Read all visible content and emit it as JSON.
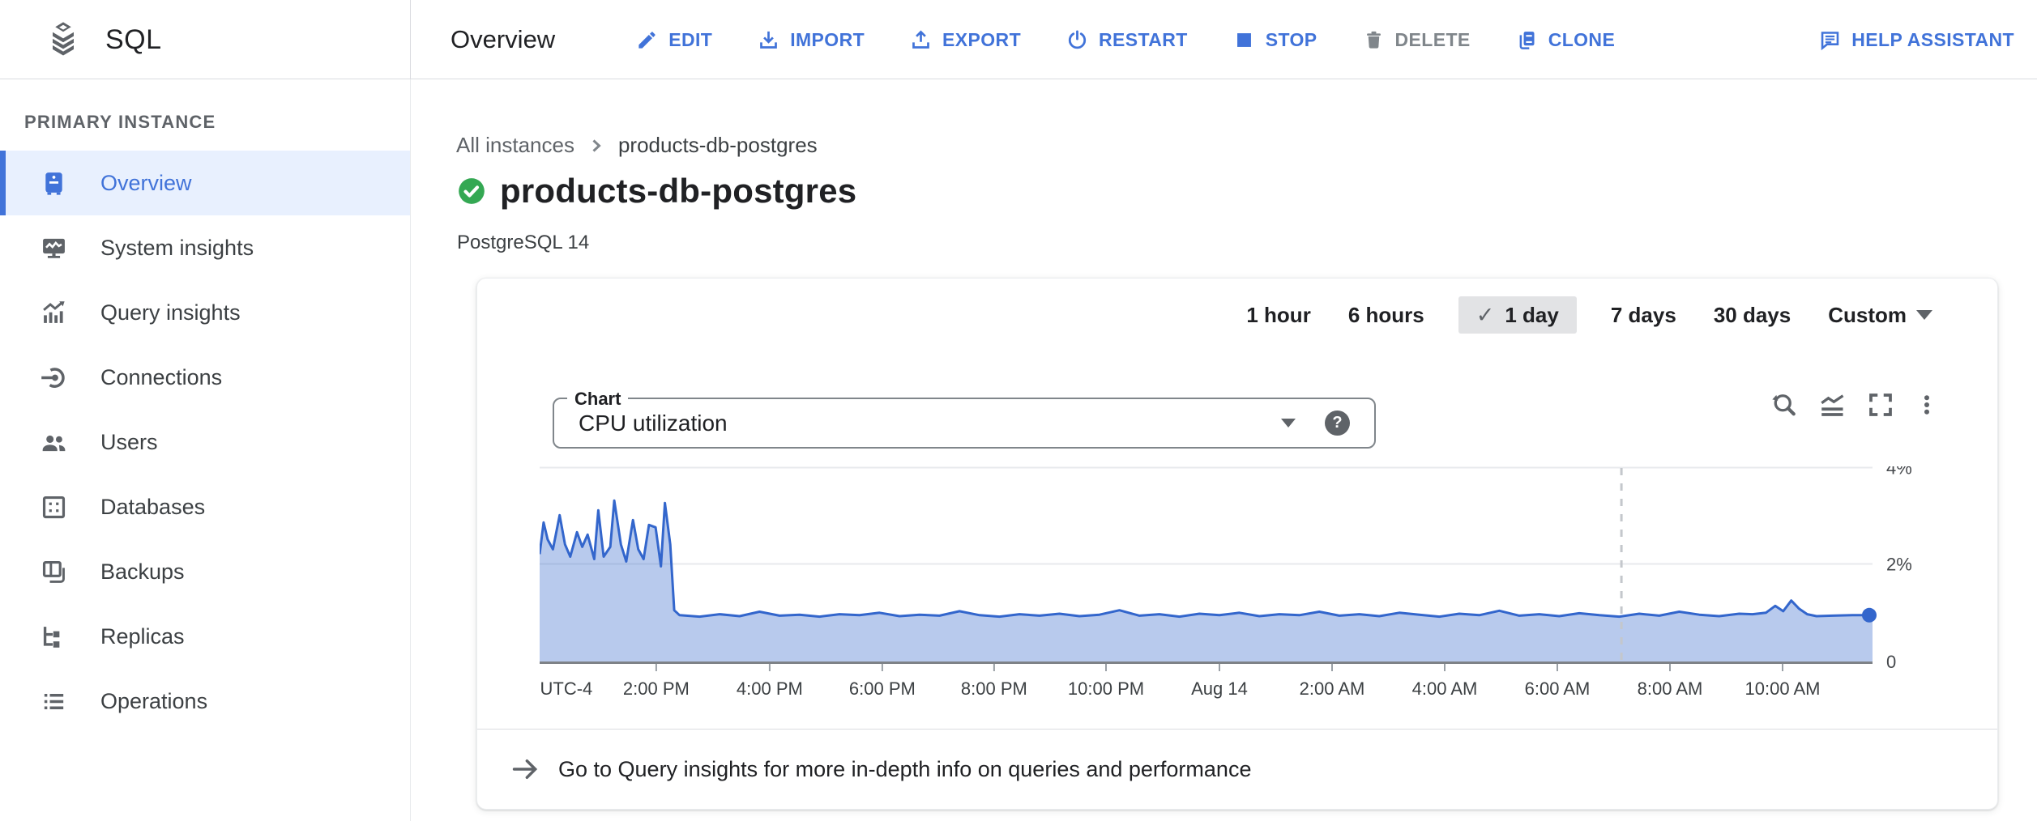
{
  "header": {
    "product": "SQL",
    "page_title": "Overview",
    "actions": [
      {
        "id": "edit",
        "label": "EDIT",
        "icon": "pencil-icon",
        "disabled": false,
        "align_right": false
      },
      {
        "id": "import",
        "label": "IMPORT",
        "icon": "import-icon",
        "disabled": false,
        "align_right": false
      },
      {
        "id": "export",
        "label": "EXPORT",
        "icon": "export-icon",
        "disabled": false,
        "align_right": false
      },
      {
        "id": "restart",
        "label": "RESTART",
        "icon": "restart-icon",
        "disabled": false,
        "align_right": false
      },
      {
        "id": "stop",
        "label": "STOP",
        "icon": "stop-icon",
        "disabled": false,
        "align_right": false
      },
      {
        "id": "delete",
        "label": "DELETE",
        "icon": "trash-icon",
        "disabled": true,
        "align_right": false
      },
      {
        "id": "clone",
        "label": "CLONE",
        "icon": "clone-icon",
        "disabled": false,
        "align_right": false
      },
      {
        "id": "help-assistant",
        "label": "HELP ASSISTANT",
        "icon": "chat-icon",
        "disabled": false,
        "align_right": true
      }
    ]
  },
  "sidebar": {
    "section_label": "PRIMARY INSTANCE",
    "items": [
      {
        "id": "overview",
        "label": "Overview",
        "icon": "overview-icon",
        "selected": true
      },
      {
        "id": "system-insights",
        "label": "System insights",
        "icon": "system-insights-icon",
        "selected": false
      },
      {
        "id": "query-insights",
        "label": "Query insights",
        "icon": "query-insights-icon",
        "selected": false
      },
      {
        "id": "connections",
        "label": "Connections",
        "icon": "connections-icon",
        "selected": false
      },
      {
        "id": "users",
        "label": "Users",
        "icon": "users-icon",
        "selected": false
      },
      {
        "id": "databases",
        "label": "Databases",
        "icon": "databases-icon",
        "selected": false
      },
      {
        "id": "backups",
        "label": "Backups",
        "icon": "backups-icon",
        "selected": false
      },
      {
        "id": "replicas",
        "label": "Replicas",
        "icon": "replicas-icon",
        "selected": false
      },
      {
        "id": "operations",
        "label": "Operations",
        "icon": "operations-icon",
        "selected": false
      }
    ]
  },
  "content": {
    "breadcrumb": {
      "parent": "All instances",
      "current": "products-db-postgres"
    },
    "instance": {
      "title": "products-db-postgres",
      "status": "running",
      "version": "PostgreSQL 14"
    },
    "time_range": {
      "options": [
        "1 hour",
        "6 hours",
        "1 day",
        "7 days",
        "30 days"
      ],
      "selected": "1 day",
      "selected_check": "✓",
      "custom_label": "Custom"
    },
    "chart_select": {
      "label": "Chart",
      "value": "CPU utilization",
      "help_glyph": "?"
    },
    "footer_link_text": "Go to Query insights for more in-depth info on queries and performance"
  },
  "colors": {
    "accent_blue": "#4173d9",
    "selected_bg": "#e8f0fe",
    "chart_line": "#3366cc",
    "chart_fill": "rgba(51,102,204,0.35)",
    "status_green": "#34a853",
    "text_primary": "#202124",
    "text_secondary": "#5f6368",
    "disabled_gray": "#80868b",
    "border": "#dadce0",
    "chip_bg": "#e2e3e5"
  },
  "chart_data": {
    "type": "area",
    "title": "CPU utilization",
    "unit": "%",
    "ylim": [
      0,
      4
    ],
    "grid": true,
    "timezone_label": "UTC-4",
    "now_line_x": 0.8116,
    "yticks": [
      {
        "value": 4,
        "label": "4%"
      },
      {
        "value": 2,
        "label": "2%"
      },
      {
        "value": 0,
        "label": "0"
      }
    ],
    "xticks": [
      {
        "label": "UTC-4",
        "x": 0.02,
        "tick": false
      },
      {
        "label": "2:00 PM",
        "x": 0.0875,
        "tick": true
      },
      {
        "label": "4:00 PM",
        "x": 0.1726,
        "tick": true
      },
      {
        "label": "6:00 PM",
        "x": 0.2571,
        "tick": true
      },
      {
        "label": "8:00 PM",
        "x": 0.341,
        "tick": true
      },
      {
        "label": "10:00 PM",
        "x": 0.4249,
        "tick": true
      },
      {
        "label": "Aug 14",
        "x": 0.51,
        "tick": true
      },
      {
        "label": "2:00 AM",
        "x": 0.5945,
        "tick": true
      },
      {
        "label": "4:00 AM",
        "x": 0.679,
        "tick": true
      },
      {
        "label": "6:00 AM",
        "x": 0.7635,
        "tick": true
      },
      {
        "label": "8:00 AM",
        "x": 0.848,
        "tick": true
      },
      {
        "label": "10:00 AM",
        "x": 0.9325,
        "tick": true
      }
    ],
    "series": [
      {
        "name": "CPU utilization (%)",
        "points": [
          [
            0.0,
            2.2
          ],
          [
            0.003,
            2.85
          ],
          [
            0.006,
            2.5
          ],
          [
            0.01,
            2.3
          ],
          [
            0.015,
            3.0
          ],
          [
            0.019,
            2.4
          ],
          [
            0.023,
            2.15
          ],
          [
            0.028,
            2.65
          ],
          [
            0.032,
            2.35
          ],
          [
            0.036,
            2.6
          ],
          [
            0.041,
            2.1
          ],
          [
            0.044,
            3.1
          ],
          [
            0.048,
            2.15
          ],
          [
            0.053,
            2.35
          ],
          [
            0.056,
            3.3
          ],
          [
            0.061,
            2.4
          ],
          [
            0.065,
            2.05
          ],
          [
            0.07,
            2.9
          ],
          [
            0.074,
            2.3
          ],
          [
            0.078,
            2.1
          ],
          [
            0.082,
            2.8
          ],
          [
            0.087,
            2.75
          ],
          [
            0.091,
            1.95
          ],
          [
            0.094,
            3.25
          ],
          [
            0.098,
            2.4
          ],
          [
            0.101,
            1.05
          ],
          [
            0.105,
            0.95
          ],
          [
            0.12,
            0.92
          ],
          [
            0.135,
            0.97
          ],
          [
            0.15,
            0.93
          ],
          [
            0.165,
            1.02
          ],
          [
            0.18,
            0.94
          ],
          [
            0.195,
            0.96
          ],
          [
            0.21,
            0.92
          ],
          [
            0.225,
            0.97
          ],
          [
            0.24,
            0.95
          ],
          [
            0.255,
            1.0
          ],
          [
            0.27,
            0.93
          ],
          [
            0.285,
            0.96
          ],
          [
            0.3,
            0.94
          ],
          [
            0.315,
            1.03
          ],
          [
            0.33,
            0.95
          ],
          [
            0.345,
            0.92
          ],
          [
            0.36,
            0.97
          ],
          [
            0.375,
            0.94
          ],
          [
            0.39,
            0.98
          ],
          [
            0.405,
            0.93
          ],
          [
            0.42,
            0.96
          ],
          [
            0.435,
            1.05
          ],
          [
            0.45,
            0.94
          ],
          [
            0.465,
            0.97
          ],
          [
            0.48,
            0.92
          ],
          [
            0.495,
            0.98
          ],
          [
            0.51,
            0.95
          ],
          [
            0.525,
            1.0
          ],
          [
            0.54,
            0.93
          ],
          [
            0.555,
            0.97
          ],
          [
            0.57,
            0.95
          ],
          [
            0.585,
            1.02
          ],
          [
            0.6,
            0.94
          ],
          [
            0.615,
            0.97
          ],
          [
            0.63,
            0.93
          ],
          [
            0.645,
            1.0
          ],
          [
            0.66,
            0.96
          ],
          [
            0.675,
            0.92
          ],
          [
            0.69,
            0.98
          ],
          [
            0.705,
            0.95
          ],
          [
            0.72,
            1.04
          ],
          [
            0.735,
            0.94
          ],
          [
            0.75,
            0.97
          ],
          [
            0.765,
            0.93
          ],
          [
            0.78,
            0.99
          ],
          [
            0.795,
            0.95
          ],
          [
            0.81,
            0.92
          ],
          [
            0.825,
            0.98
          ],
          [
            0.84,
            0.94
          ],
          [
            0.855,
            1.02
          ],
          [
            0.87,
            0.96
          ],
          [
            0.885,
            0.93
          ],
          [
            0.9,
            0.98
          ],
          [
            0.91,
            0.97
          ],
          [
            0.92,
            1.0
          ],
          [
            0.927,
            1.14
          ],
          [
            0.933,
            1.03
          ],
          [
            0.939,
            1.25
          ],
          [
            0.945,
            1.08
          ],
          [
            0.951,
            0.97
          ],
          [
            0.958,
            0.93
          ],
          [
            0.97,
            0.94
          ],
          [
            0.985,
            0.95
          ],
          [
            1.0,
            0.95
          ]
        ]
      }
    ]
  }
}
